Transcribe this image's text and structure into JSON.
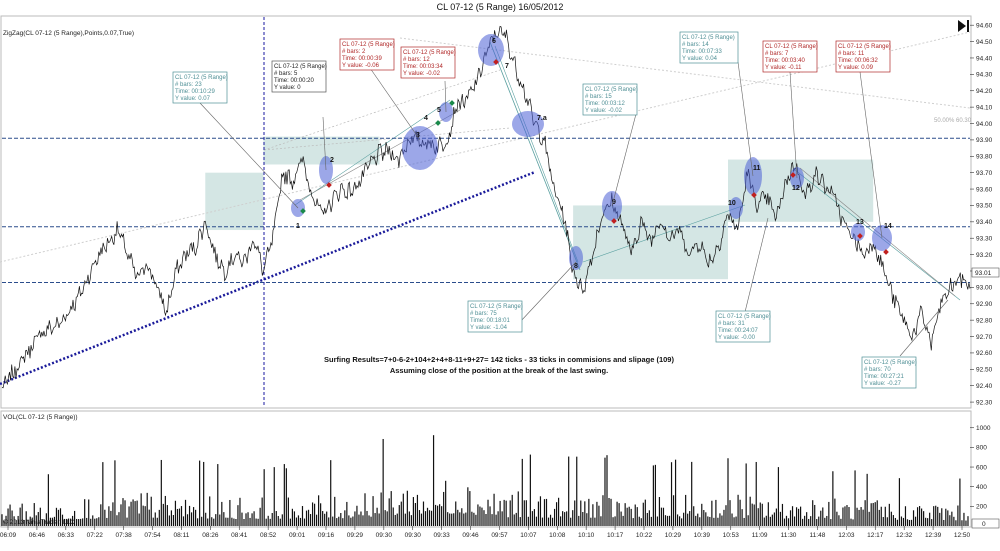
{
  "window": {
    "title": "CL 07-12 (5 Range)  16/05/2012"
  },
  "indicator_label": "ZigZag(CL 07-12 (5 Range),Points,0.07,True)",
  "volume_label": "VOL(CL 07-12 (5 Range))",
  "copyright": "© 2013 NinjaTrader, LLC",
  "fib_label": "50.00% 60.30",
  "summary": {
    "line1": "Surfing Results=7+0-6-2+104+2+4+8-11+9+27= 142 ticks - 33 ticks in commisions and slipage (109)",
    "line2": "Assuming close of the position at the break of the last swing."
  },
  "colors": {
    "price": "#111111",
    "trend": "#1a1a9a",
    "zone": "#9fc7c4",
    "hline": "#2b4d8c",
    "highlight": "#4a5ed6",
    "info_teal": "#4f8f95",
    "info_red": "#b02828"
  },
  "info_boxes": [
    {
      "title": "CL 07-12 (5 Range)",
      "lines": [
        "# bars:   23",
        "Time:     00:10:29",
        "Y value: 0.07"
      ],
      "color": "teal"
    },
    {
      "title": "CL 07-12 (5 Range)",
      "lines": [
        "# bars:   5",
        "Time:     00:00:20",
        "Y value: 0"
      ],
      "color": "black"
    },
    {
      "title": "CL 07-12 (5 Range)",
      "lines": [
        "# bars:   2",
        "Time:     00:00:39",
        "Y value: -0.06"
      ],
      "color": "red"
    },
    {
      "title": "CL 07-12 (5 Range)",
      "lines": [
        "# bars:   12",
        "Time:     00:03:34",
        "Y value: -0.02"
      ],
      "color": "red"
    },
    {
      "title": "CL 07-12 (5 Range)",
      "lines": [
        "# bars:   15",
        "Time:     00:03:12",
        "Y value: -0.02"
      ],
      "color": "teal"
    },
    {
      "title": "CL 07-12 (5 Range)",
      "lines": [
        "# bars:   14",
        "Time:     00:07:33",
        "Y value: 0.04"
      ],
      "color": "teal"
    },
    {
      "title": "CL 07-12 (5 Range)",
      "lines": [
        "# bars:   7",
        "Time:     00:03:40",
        "Y value: -0.11"
      ],
      "color": "red"
    },
    {
      "title": "CL 07-12 (5 Range)",
      "lines": [
        "# bars:   11",
        "Time:     00:06:32",
        "Y value: 0.09"
      ],
      "color": "red"
    },
    {
      "title": "CL 07-12 (5 Range)",
      "lines": [
        "# bars:   75",
        "Time:     00:18:01",
        "Y value: -1.04"
      ],
      "color": "teal"
    },
    {
      "title": "CL 07-12 (5 Range)",
      "lines": [
        "# bars:   31",
        "Time:     00:24:07",
        "Y value: -0.00"
      ],
      "color": "teal"
    },
    {
      "title": "CL 07-12 (5 Range)",
      "lines": [
        "# bars:   70",
        "Time:     00:27:21",
        "Y value: -0.27"
      ],
      "color": "teal"
    }
  ],
  "swing_labels": [
    "1",
    "2",
    "3",
    "4",
    "5",
    "6",
    "7",
    "7.a",
    "8",
    "9",
    "10",
    "11",
    "12",
    "13",
    "14"
  ],
  "chart_data": [
    {
      "type": "line",
      "title": "CL 07-12 (5 Range)  16/05/2012",
      "series_name": "CL 07-12 (5 Range)",
      "y_ticks": [
        92.3,
        92.4,
        92.5,
        92.6,
        92.7,
        92.8,
        92.9,
        93.0,
        93.1,
        93.2,
        93.3,
        93.4,
        93.5,
        93.6,
        93.7,
        93.8,
        93.9,
        94.0,
        94.1,
        94.2,
        94.3,
        94.4,
        94.5,
        94.6
      ],
      "y_tick_labels": [
        "92.30",
        "92.40",
        "92.50",
        "92.60",
        "92.70",
        "92.80",
        "92.90",
        "93.00",
        "93.10",
        "93.20",
        "93.30",
        "93.40",
        "93.50",
        "93.60",
        "93.70",
        "93.80",
        "93.90",
        "94.00",
        "94.10",
        "94.20",
        "94.30",
        "94.40",
        "94.50",
        "94.60"
      ],
      "ylim": [
        92.27,
        94.65
      ],
      "current_price_label": "93.01",
      "x_tick_labels": [
        "06:09",
        "06:46",
        "06:33",
        "07:22",
        "07:38",
        "07:54",
        "08:11",
        "08:26",
        "08:41",
        "08:52",
        "09:01",
        "09:16",
        "09:29",
        "09:30",
        "09:30",
        "09:33",
        "09:46",
        "09:57",
        "10:07",
        "10:08",
        "10:10",
        "10:17",
        "10:22",
        "10:29",
        "10:39",
        "10:53",
        "11:09",
        "11:30",
        "11:48",
        "12:03",
        "12:17",
        "12:32",
        "12:39",
        "12:50"
      ],
      "price_waypoints": [
        [
          0,
          92.38
        ],
        [
          4,
          92.55
        ],
        [
          8,
          92.72
        ],
        [
          12,
          92.78
        ],
        [
          16,
          92.95
        ],
        [
          20,
          93.2
        ],
        [
          24,
          93.35
        ],
        [
          26,
          93.2
        ],
        [
          28,
          93.05
        ],
        [
          30,
          93.15
        ],
        [
          32,
          93.0
        ],
        [
          34,
          92.85
        ],
        [
          36,
          93.1
        ],
        [
          38,
          93.2
        ],
        [
          40,
          93.25
        ],
        [
          42,
          93.4
        ],
        [
          44,
          93.2
        ],
        [
          46,
          93.1
        ],
        [
          48,
          93.2
        ],
        [
          50,
          93.15
        ],
        [
          52,
          93.3
        ],
        [
          54,
          93.1
        ],
        [
          56,
          93.3
        ],
        [
          58,
          93.7
        ],
        [
          60,
          93.65
        ],
        [
          62,
          93.78
        ],
        [
          64,
          93.58
        ],
        [
          66,
          93.44
        ],
        [
          68,
          93.52
        ],
        [
          70,
          93.6
        ],
        [
          72,
          93.58
        ],
        [
          74,
          93.65
        ],
        [
          76,
          93.75
        ],
        [
          78,
          93.82
        ],
        [
          80,
          93.83
        ],
        [
          82,
          93.78
        ],
        [
          84,
          93.9
        ],
        [
          86,
          93.9
        ],
        [
          88,
          93.88
        ],
        [
          90,
          93.86
        ],
        [
          92,
          93.9
        ],
        [
          94,
          94.12
        ],
        [
          96,
          94.14
        ],
        [
          98,
          94.25
        ],
        [
          100,
          94.42
        ],
        [
          102,
          94.56
        ],
        [
          104,
          94.54
        ],
        [
          106,
          94.35
        ],
        [
          108,
          94.2
        ],
        [
          110,
          94.0
        ],
        [
          112,
          93.9
        ],
        [
          114,
          93.6
        ],
        [
          116,
          93.45
        ],
        [
          118,
          93.1
        ],
        [
          120,
          92.98
        ],
        [
          122,
          93.2
        ],
        [
          124,
          93.45
        ],
        [
          126,
          93.52
        ],
        [
          128,
          93.4
        ],
        [
          130,
          93.2
        ],
        [
          132,
          93.4
        ],
        [
          134,
          93.28
        ],
        [
          136,
          93.42
        ],
        [
          138,
          93.3
        ],
        [
          140,
          93.35
        ],
        [
          142,
          93.2
        ],
        [
          144,
          93.28
        ],
        [
          146,
          93.15
        ],
        [
          148,
          93.25
        ],
        [
          150,
          93.45
        ],
        [
          152,
          93.35
        ],
        [
          154,
          93.7
        ],
        [
          156,
          93.5
        ],
        [
          158,
          93.55
        ],
        [
          160,
          93.42
        ],
        [
          162,
          93.65
        ],
        [
          164,
          93.76
        ],
        [
          166,
          93.55
        ],
        [
          168,
          93.7
        ],
        [
          170,
          93.62
        ],
        [
          172,
          93.55
        ],
        [
          174,
          93.38
        ],
        [
          176,
          93.3
        ],
        [
          178,
          93.2
        ],
        [
          180,
          93.28
        ],
        [
          182,
          93.12
        ],
        [
          184,
          92.95
        ],
        [
          186,
          92.82
        ],
        [
          188,
          92.7
        ],
        [
          190,
          92.84
        ],
        [
          192,
          92.66
        ],
        [
          194,
          92.9
        ],
        [
          196,
          93.0
        ],
        [
          198,
          93.06
        ],
        [
          200,
          93.01
        ]
      ],
      "horizontal_levels": [
        93.91,
        93.37,
        93.03
      ],
      "zones": [
        {
          "x0": 42,
          "x1": 54,
          "y0": 93.35,
          "y1": 93.7
        },
        {
          "x0": 54,
          "x1": 78,
          "y0": 93.75,
          "y1": 93.92
        },
        {
          "x0": 118,
          "x1": 150,
          "y0": 93.05,
          "y1": 93.5
        },
        {
          "x0": 150,
          "x1": 180,
          "y0": 93.4,
          "y1": 93.78
        }
      ]
    },
    {
      "type": "bar",
      "title": "VOL(CL 07-12 (5 Range))",
      "y_ticks": [
        200,
        400,
        600,
        800,
        1000
      ],
      "y_tick_labels": [
        "200",
        "400",
        "600",
        "800",
        "1000"
      ],
      "ylim": [
        0,
        1150
      ],
      "current_value_label": "0",
      "volume_profile": [
        [
          0,
          220
        ],
        [
          10,
          260
        ],
        [
          20,
          300
        ],
        [
          30,
          330
        ],
        [
          40,
          310
        ],
        [
          50,
          280
        ],
        [
          60,
          300
        ],
        [
          70,
          310
        ],
        [
          80,
          420
        ],
        [
          90,
          460
        ],
        [
          95,
          520
        ],
        [
          100,
          380
        ],
        [
          110,
          330
        ],
        [
          120,
          340
        ],
        [
          130,
          320
        ],
        [
          140,
          310
        ],
        [
          150,
          340
        ],
        [
          160,
          300
        ],
        [
          170,
          280
        ],
        [
          180,
          260
        ],
        [
          190,
          240
        ],
        [
          200,
          220
        ]
      ]
    }
  ]
}
